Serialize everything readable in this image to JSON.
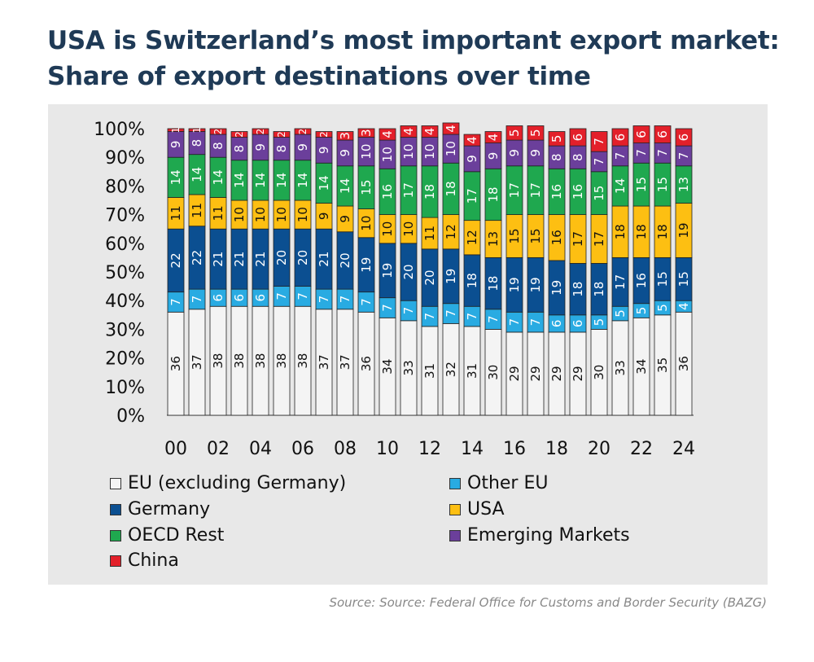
{
  "title_line1": "USA is Switzerland’s most important export market:",
  "title_line2": "Share of export destinations over time",
  "source": "Source: Source: Federal Office for Customs and Border Security (BAZG)",
  "chart_data": {
    "type": "bar",
    "stacked": true,
    "categories": [
      "00",
      "01",
      "02",
      "03",
      "04",
      "05",
      "06",
      "07",
      "08",
      "09",
      "10",
      "11",
      "12",
      "13",
      "14",
      "15",
      "16",
      "17",
      "18",
      "19",
      "20",
      "21",
      "22",
      "23",
      "24"
    ],
    "x_tick_labels": [
      "00",
      "02",
      "04",
      "06",
      "08",
      "10",
      "12",
      "14",
      "16",
      "18",
      "20",
      "22",
      "24"
    ],
    "y_tick_labels": [
      "0%",
      "10%",
      "20%",
      "30%",
      "40%",
      "50%",
      "60%",
      "70%",
      "80%",
      "90%",
      "100%"
    ],
    "ylim": [
      0,
      100
    ],
    "legend_placement": "bottom",
    "series": [
      {
        "name": "EU (excluding Germany)",
        "color": "#f4f4f4",
        "text_color": "#111",
        "values": [
          36,
          37,
          38,
          38,
          38,
          38,
          38,
          37,
          37,
          36,
          34,
          33,
          31,
          32,
          31,
          30,
          29,
          29,
          29,
          29,
          30,
          33,
          34,
          35,
          36
        ]
      },
      {
        "name": "Other EU",
        "color": "#29abe2",
        "text_color": "#fff",
        "values": [
          7,
          7,
          6,
          6,
          6,
          7,
          7,
          7,
          7,
          7,
          7,
          7,
          7,
          7,
          7,
          7,
          7,
          7,
          6,
          6,
          5,
          5,
          5,
          5,
          4
        ]
      },
      {
        "name": "Germany",
        "color": "#0b4f91",
        "text_color": "#fff",
        "values": [
          22,
          22,
          21,
          21,
          21,
          20,
          20,
          21,
          20,
          19,
          19,
          20,
          20,
          19,
          18,
          18,
          19,
          19,
          19,
          18,
          18,
          17,
          16,
          15,
          15
        ]
      },
      {
        "name": "USA",
        "color": "#fdbf12",
        "text_color": "#111",
        "values": [
          11,
          11,
          11,
          10,
          10,
          10,
          10,
          9,
          9,
          10,
          10,
          10,
          11,
          12,
          12,
          13,
          15,
          15,
          16,
          17,
          17,
          18,
          18,
          18,
          19
        ]
      },
      {
        "name": "OECD Rest",
        "color": "#1fa84f",
        "text_color": "#fff",
        "values": [
          14,
          14,
          14,
          14,
          14,
          14,
          14,
          14,
          14,
          15,
          16,
          17,
          18,
          18,
          17,
          18,
          17,
          17,
          16,
          16,
          15,
          14,
          15,
          15,
          13
        ]
      },
      {
        "name": "Emerging Markets",
        "color": "#6b3f9b",
        "text_color": "#fff",
        "values": [
          9,
          8,
          8,
          8,
          9,
          8,
          9,
          9,
          9,
          10,
          10,
          10,
          10,
          10,
          9,
          9,
          9,
          9,
          8,
          8,
          7,
          7,
          7,
          7,
          7
        ]
      },
      {
        "name": "China",
        "color": "#e3202a",
        "text_color": "#fff",
        "values": [
          1,
          1,
          2,
          2,
          2,
          2,
          2,
          2,
          3,
          3,
          4,
          4,
          4,
          4,
          4,
          4,
          5,
          5,
          5,
          6,
          7,
          6,
          6,
          6,
          6
        ]
      }
    ]
  }
}
